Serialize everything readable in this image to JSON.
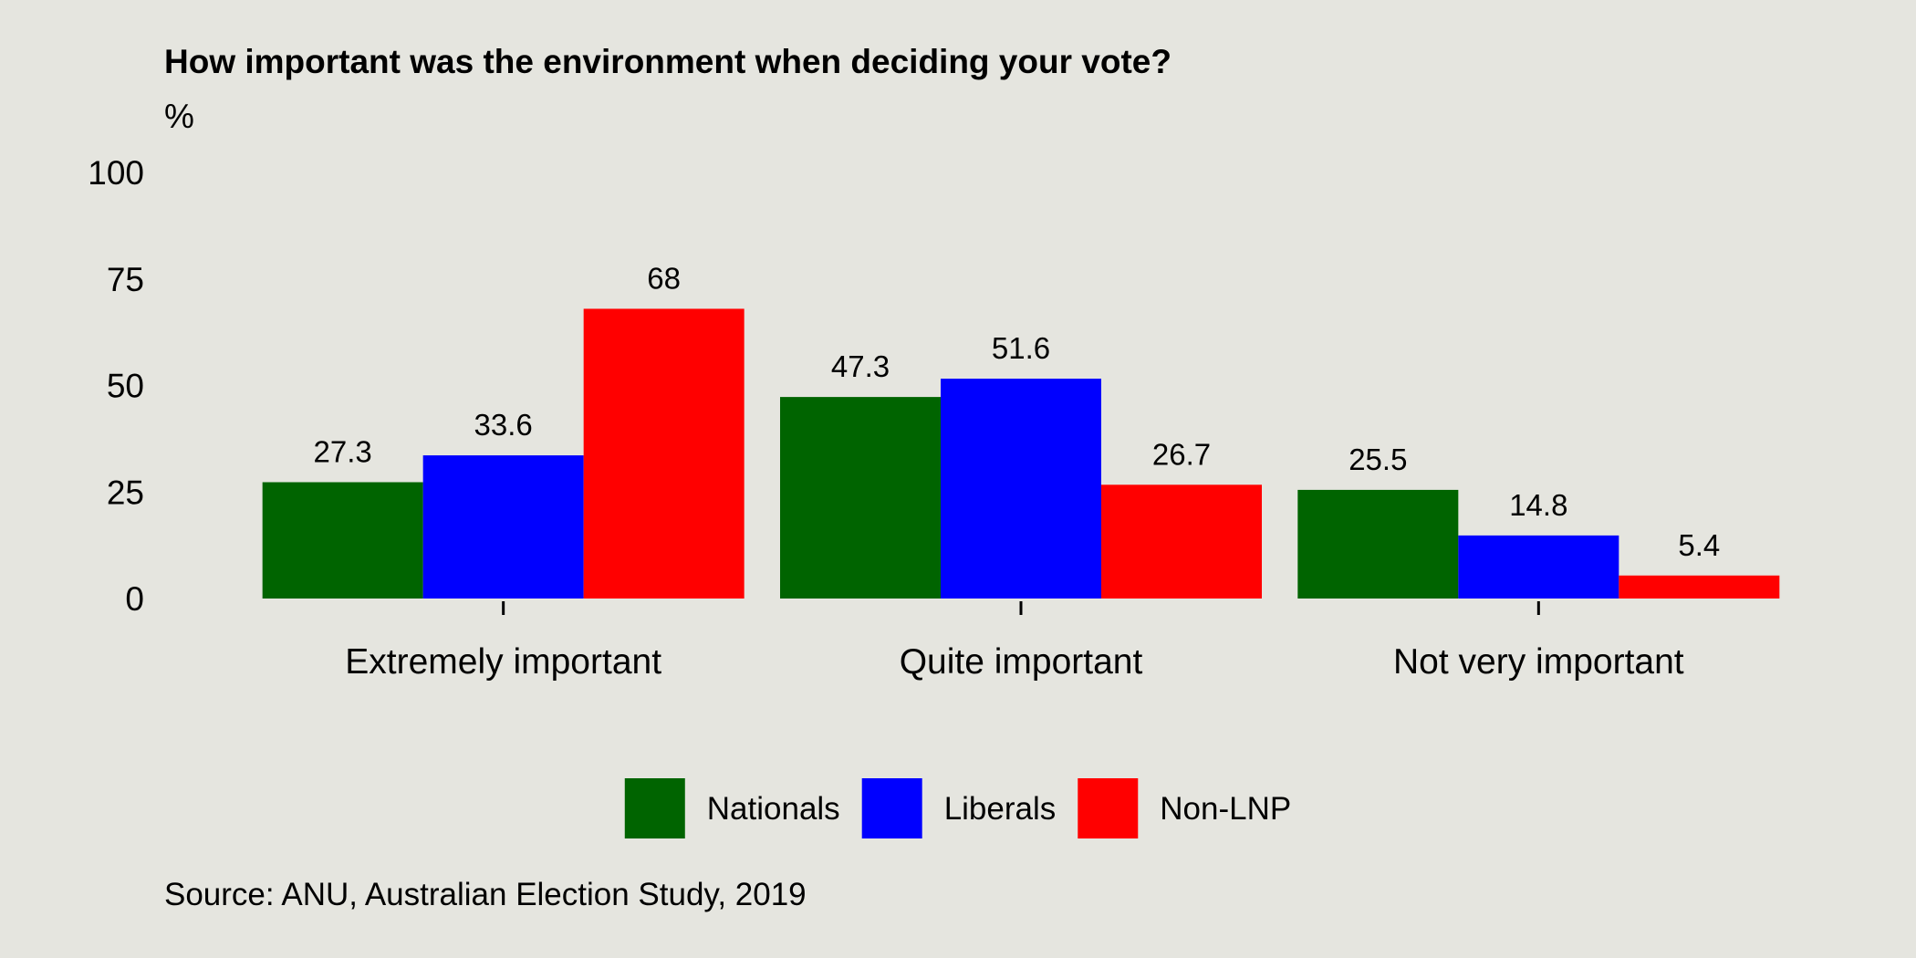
{
  "chart_data": {
    "type": "bar",
    "title": "How important was the environment when deciding your vote?",
    "ylabel": "%",
    "ylim": [
      0,
      100
    ],
    "yticks": [
      0,
      25,
      50,
      75,
      100
    ],
    "categories": [
      "Extremely important",
      "Quite important",
      "Not very important"
    ],
    "series": [
      {
        "name": "Nationals",
        "color": "#006400",
        "values": [
          27.3,
          47.3,
          25.5
        ]
      },
      {
        "name": "Liberals",
        "color": "#0000ff",
        "values": [
          33.6,
          51.6,
          14.8
        ]
      },
      {
        "name": "Non-LNP",
        "color": "#ff0000",
        "values": [
          68,
          26.7,
          5.4
        ]
      }
    ],
    "data_labels": [
      [
        "27.3",
        "47.3",
        "25.5"
      ],
      [
        "33.6",
        "51.6",
        "14.8"
      ],
      [
        "68",
        "26.7",
        "5.4"
      ]
    ],
    "legend_position": "bottom",
    "grid": false,
    "source": "Source: ANU, Australian Election Study, 2019",
    "background_color": "#e5e5df"
  }
}
